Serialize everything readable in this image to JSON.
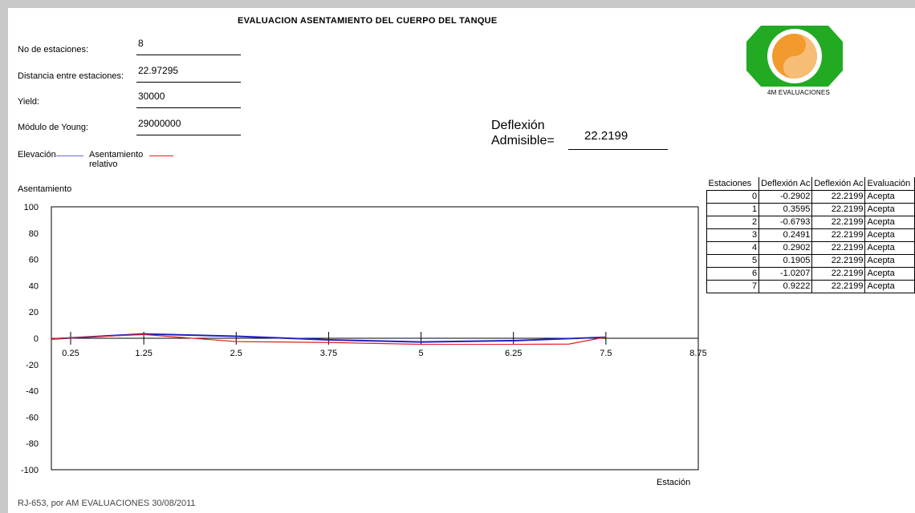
{
  "title": "EVALUACION ASENTAMIENTO DEL CUERPO DEL TANQUE",
  "fields": [
    {
      "label": "No de estaciones:",
      "value": "8"
    },
    {
      "label": "Distancia entre estaciones:",
      "value": "22.97295"
    },
    {
      "label": "Yield:",
      "value": "30000"
    },
    {
      "label": "Módulo de Young:",
      "value": "29000000"
    }
  ],
  "deflexion": {
    "label_line1": "Deflexión",
    "label_line2": "Admisible=",
    "value": "22.2199"
  },
  "legend": {
    "elevacion": "Elevación",
    "asentamiento_line1": "Asentamiento",
    "asentamiento_line2": "relativo",
    "elevacion_color": "#6b6bd6",
    "asentamiento_color": "#e02020"
  },
  "logo": {
    "text": "4M EVALUACIONES",
    "green": "#22aa22",
    "orange": "#f39a2e"
  },
  "chart_data": {
    "type": "line",
    "ylabel": "Asentamiento",
    "xlabel": "Estación",
    "ylim": [
      -100,
      100
    ],
    "yticks": [
      100,
      80,
      60,
      40,
      20,
      0,
      -20,
      -40,
      -60,
      -80,
      -100
    ],
    "xlim": [
      0,
      8.75
    ],
    "xticks": [
      "0.25",
      "1.25",
      "2.5",
      "3.75",
      "5",
      "6.25",
      "7.5",
      "8.75"
    ],
    "series": [
      {
        "name": "Elevación",
        "color": "#2020c0",
        "x": [
          0,
          1.25,
          2.5,
          3.75,
          5,
          6.25,
          7.5
        ],
        "y": [
          -0.5,
          3.3,
          1.5,
          -1.2,
          -2.8,
          -1.8,
          0.8
        ]
      },
      {
        "name": "Asentamiento relativo",
        "color": "#e02020",
        "x": [
          0,
          1.25,
          2.5,
          3.75,
          5,
          6.25,
          7,
          7.5
        ],
        "y": [
          -0.3,
          2.8,
          -2.5,
          -3.2,
          -4.6,
          -4.6,
          -4.4,
          0.9
        ]
      }
    ]
  },
  "table": {
    "headers": [
      "Estaciones",
      "Deflexión Ac",
      "Deflexión Ac",
      "Evaluación"
    ],
    "rows": [
      [
        "0",
        "-0.2902",
        "22.2199",
        "Acepta"
      ],
      [
        "1",
        "0.3595",
        "22.2199",
        "Acepta"
      ],
      [
        "2",
        "-0.6793",
        "22.2199",
        "Acepta"
      ],
      [
        "3",
        "0.2491",
        "22.2199",
        "Acepta"
      ],
      [
        "4",
        "0.2902",
        "22.2199",
        "Acepta"
      ],
      [
        "5",
        "0.1905",
        "22.2199",
        "Acepta"
      ],
      [
        "6",
        "-1.0207",
        "22.2199",
        "Acepta"
      ],
      [
        "7",
        "0.9222",
        "22.2199",
        "Acepta"
      ]
    ]
  },
  "footer": "RJ-653, por AM EVALUACIONES   30/08/2011"
}
